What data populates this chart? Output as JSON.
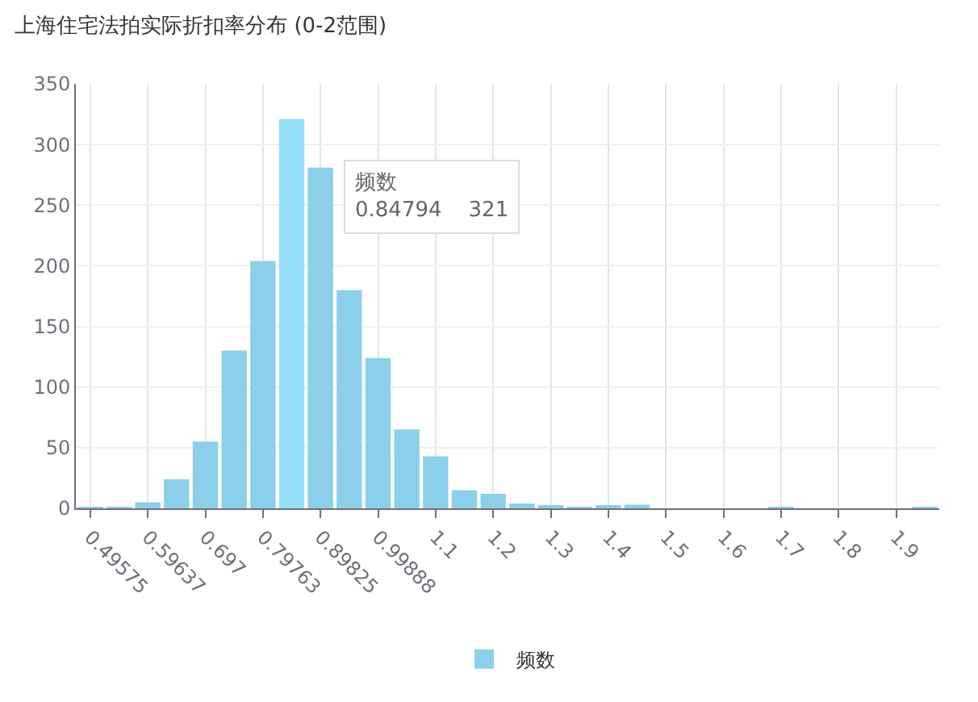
{
  "chart_data": {
    "type": "bar",
    "title": "上海住宅法拍实际折扣率分布 (0-2范围)",
    "categories": [
      "0.49575",
      null,
      "0.59637",
      null,
      "0.697",
      null,
      "0.79763",
      null,
      "0.89825",
      null,
      "0.99888",
      null,
      "1.1",
      null,
      "1.2",
      null,
      "1.3",
      null,
      "1.4",
      null,
      "1.5",
      null,
      "1.6",
      null,
      "1.7",
      null,
      "1.8",
      null,
      "1.9",
      null
    ],
    "series": [
      {
        "name": "频数",
        "colors": [
          "#8ccfea",
          "#8ccfea",
          "#8ccfea",
          "#8ccfea",
          "#8ccfea",
          "#8ccfea",
          "#8ccfea",
          "#96dff8",
          "#8ccfea",
          "#8ccfea",
          "#8ccfea",
          "#8ccfea",
          "#8ccfea",
          "#8ccfea",
          "#8ccfea",
          "#8ccfea",
          "#8ccfea",
          "#8ccfea",
          "#8ccfea",
          "#8ccfea",
          "#8ccfea",
          "#8ccfea",
          "#8ccfea",
          "#8ccfea",
          "#8ccfea",
          "#8ccfea",
          "#8ccfea",
          "#8ccfea",
          "#8ccfea",
          "#8ccfea"
        ],
        "values": [
          1,
          1,
          5,
          24,
          55,
          130,
          204,
          321,
          281,
          180,
          124,
          65,
          43,
          15,
          12,
          4,
          2,
          1,
          2,
          3,
          0,
          0,
          0,
          0,
          1,
          0,
          0,
          0,
          0,
          1
        ]
      }
    ],
    "ylim": [
      0,
      350
    ],
    "yticks": [
      0,
      50,
      100,
      150,
      200,
      250,
      300,
      350
    ],
    "grid": true,
    "legend": "bottom",
    "annotations": [
      "频数\n0.84794    321"
    ]
  }
}
